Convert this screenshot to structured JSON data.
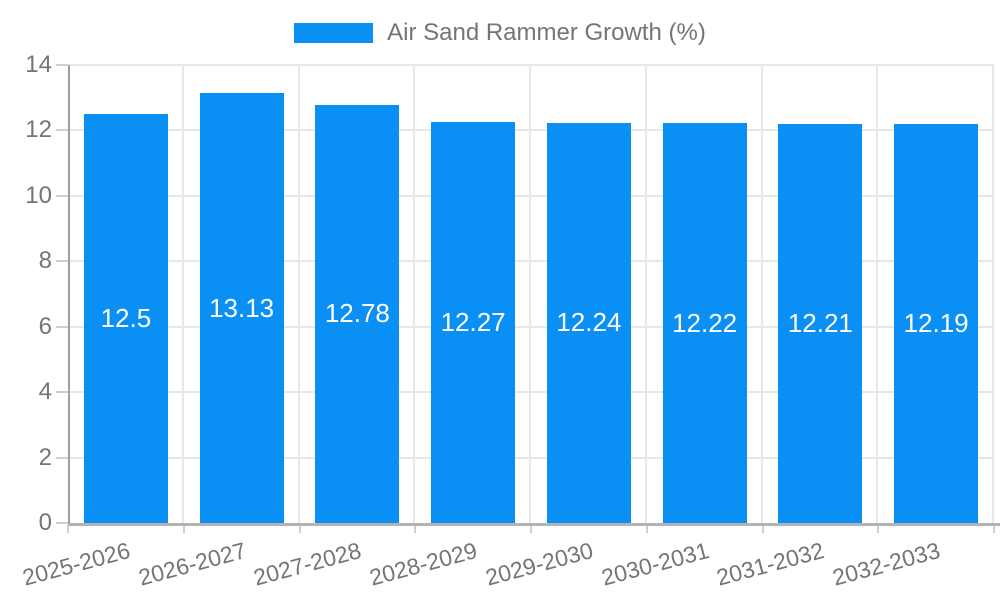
{
  "legend": {
    "label": "Air Sand Rammer Growth (%)"
  },
  "chart_data": {
    "type": "bar",
    "title": "Air Sand Rammer Growth (%)",
    "categories": [
      "2025-2026",
      "2026-2027",
      "2027-2028",
      "2028-2029",
      "2029-2030",
      "2030-2031",
      "2031-2032",
      "2032-2033"
    ],
    "values": [
      12.5,
      13.13,
      12.78,
      12.27,
      12.24,
      12.22,
      12.21,
      12.19
    ],
    "bar_labels": [
      "12.5",
      "13.13",
      "12.78",
      "12.27",
      "12.24",
      "12.22",
      "12.21",
      "12.19"
    ],
    "xlabel": "",
    "ylabel": "",
    "ylim": [
      0,
      14
    ],
    "yticks": [
      0,
      2,
      4,
      6,
      8,
      10,
      12,
      14
    ],
    "grid": true,
    "legend_position": "top-center",
    "x_label_rotation_deg": -15,
    "colors": {
      "bar": "#0a90f5",
      "grid": "#e7e7e7",
      "axis_left": "#9e9e9e",
      "axis_bottom": "#b3b3b3",
      "tick_mark": "#cfcfcf",
      "tick_text": "#757575",
      "value_label": "#ffffff",
      "background": "#ffffff"
    }
  }
}
